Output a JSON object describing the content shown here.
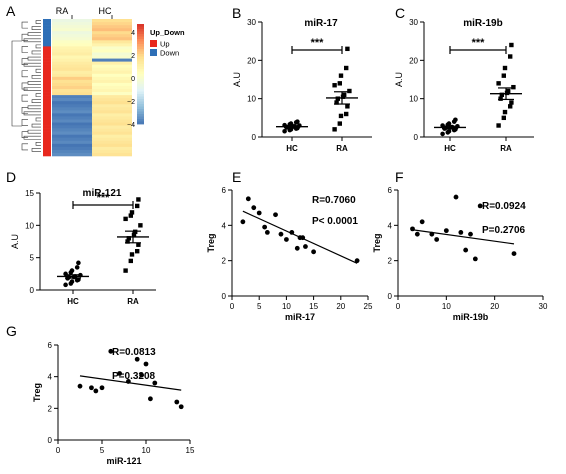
{
  "panel_letters": [
    "A",
    "B",
    "C",
    "D",
    "E",
    "F",
    "G"
  ],
  "chart_data": [
    {
      "panel": "A",
      "type": "heatmap",
      "columns": [
        "RA",
        "HC"
      ],
      "legend": {
        "title": "Up_Down",
        "entries": [
          {
            "label": "Up",
            "color": "#e8281e"
          },
          {
            "label": "Down",
            "color": "#2e6fb7"
          }
        ]
      },
      "colorbar_ticks": [
        "4",
        "2",
        "0",
        "−2",
        "−4"
      ],
      "colorbar_range": [
        -4,
        4
      ],
      "colorscale": [
        "#d73027",
        "#fc8d59",
        "#fee090",
        "#ffffbf",
        "#e0f3f8",
        "#91bfdb",
        "#4575b4"
      ],
      "row_blocks": [
        {
          "group": "Down",
          "rows": 7,
          "RA": -0.6,
          "HC": 1.6
        },
        {
          "group": "Down",
          "rows": 2,
          "RA": -0.2,
          "HC": 0.8
        },
        {
          "group": "Up",
          "rows": 4,
          "RA": 0.6,
          "HC": -0.2
        },
        {
          "group": "Up",
          "rows": 1,
          "RA": 0.4,
          "HC": -3.6
        },
        {
          "group": "Up",
          "rows": 5,
          "RA": 0.9,
          "HC": 0.3
        },
        {
          "group": "Up",
          "rows": 6,
          "RA": 1.4,
          "HC": 0.2
        },
        {
          "group": "Up",
          "rows": 20,
          "RA": -3.8,
          "HC": 1.0
        }
      ]
    },
    {
      "panel": "B",
      "type": "scatter",
      "title": "miR-17",
      "ylabel": "A.U",
      "categories": [
        "HC",
        "RA"
      ],
      "ylim": [
        0,
        30
      ],
      "yticks": [
        "0",
        "10",
        "20",
        "30"
      ],
      "significance": "***",
      "groups": [
        {
          "name": "HC",
          "values": [
            1.5,
            1.8,
            2.0,
            2.2,
            2.3,
            2.5,
            2.6,
            2.7,
            2.8,
            3.0,
            3.1,
            3.3,
            3.5,
            3.8,
            4.0
          ],
          "mean": 2.7,
          "sem": 0.25
        },
        {
          "name": "RA",
          "values": [
            2.0,
            3.5,
            5.5,
            6.0,
            8.0,
            9.0,
            10.0,
            10.5,
            11.0,
            12.0,
            13.5,
            14.0,
            16.0,
            18.0,
            23.0
          ],
          "mean": 10.2,
          "sem": 1.6
        }
      ]
    },
    {
      "panel": "C",
      "type": "scatter",
      "title": "miR-19b",
      "ylabel": "A.U",
      "categories": [
        "HC",
        "RA"
      ],
      "ylim": [
        0,
        30
      ],
      "yticks": [
        "0",
        "10",
        "20",
        "30"
      ],
      "significance": "***",
      "groups": [
        {
          "name": "HC",
          "values": [
            0.8,
            1.2,
            1.5,
            1.8,
            2.0,
            2.2,
            2.4,
            2.5,
            2.6,
            2.8,
            3.0,
            3.2,
            3.5,
            4.0,
            4.5
          ],
          "mean": 2.5,
          "sem": 0.3
        },
        {
          "name": "RA",
          "values": [
            3.0,
            5.0,
            6.5,
            8.0,
            9.0,
            10.0,
            11.0,
            11.5,
            12.0,
            13.0,
            14.0,
            16.0,
            18.0,
            21.0,
            24.0
          ],
          "mean": 11.3,
          "sem": 1.5
        }
      ]
    },
    {
      "panel": "D",
      "type": "scatter",
      "title": "miR-121",
      "ylabel": "A.U",
      "categories": [
        "HC",
        "RA"
      ],
      "ylim": [
        0,
        15
      ],
      "yticks": [
        "0",
        "5",
        "10",
        "15"
      ],
      "significance": "***",
      "groups": [
        {
          "name": "HC",
          "values": [
            0.8,
            1.0,
            1.3,
            1.5,
            1.6,
            1.8,
            2.0,
            2.0,
            2.1,
            2.3,
            2.5,
            2.7,
            3.0,
            3.5,
            4.2
          ],
          "mean": 2.1,
          "sem": 0.25
        },
        {
          "name": "RA",
          "values": [
            3.0,
            4.5,
            5.5,
            6.0,
            7.0,
            7.5,
            8.0,
            8.5,
            9.0,
            10.0,
            11.0,
            11.5,
            12.0,
            13.0,
            14.0
          ],
          "mean": 8.2,
          "sem": 0.9
        }
      ]
    },
    {
      "panel": "E",
      "type": "scatter",
      "xlabel": "miR-17",
      "ylabel": "Treg",
      "xlim": [
        0,
        25
      ],
      "ylim": [
        0,
        6
      ],
      "xticks": [
        "0",
        "5",
        "10",
        "15",
        "20",
        "25"
      ],
      "yticks": [
        "0",
        "2",
        "4",
        "6"
      ],
      "annotations": [
        "R=0.7060",
        "P< 0.0001"
      ],
      "x": [
        2.0,
        3.0,
        4.0,
        5.0,
        6.0,
        6.5,
        8.0,
        9.0,
        10.0,
        11.0,
        12.0,
        12.5,
        13.0,
        13.5,
        15.0,
        23.0
      ],
      "y": [
        4.2,
        5.5,
        5.0,
        4.7,
        3.9,
        3.6,
        4.6,
        3.5,
        3.2,
        3.6,
        2.7,
        3.3,
        3.3,
        2.8,
        2.5,
        2.0
      ],
      "fit": {
        "x": [
          2.0,
          23.0
        ],
        "y": [
          4.8,
          1.85
        ]
      }
    },
    {
      "panel": "F",
      "type": "scatter",
      "xlabel": "miR-19b",
      "ylabel": "Treg",
      "xlim": [
        0,
        30
      ],
      "ylim": [
        0,
        6
      ],
      "xticks": [
        "0",
        "10",
        "20",
        "30"
      ],
      "yticks": [
        "0",
        "2",
        "4",
        "6"
      ],
      "annotations": [
        "R=0.0924",
        "P=0.2706"
      ],
      "x": [
        3.0,
        4.0,
        5.0,
        7.0,
        8.0,
        10.0,
        12.0,
        13.0,
        14.0,
        15.0,
        16.0,
        17.0,
        24.0
      ],
      "y": [
        3.8,
        3.5,
        4.2,
        3.5,
        3.2,
        3.7,
        5.6,
        3.6,
        2.6,
        3.5,
        2.1,
        5.1,
        2.4
      ],
      "fit": {
        "x": [
          3.0,
          24.0
        ],
        "y": [
          3.75,
          2.95
        ]
      }
    },
    {
      "panel": "G",
      "type": "scatter",
      "xlabel": "miR-121",
      "ylabel": "Treg",
      "xlim": [
        0,
        15
      ],
      "ylim": [
        0,
        6
      ],
      "xticks": [
        "0",
        "5",
        "10",
        "15"
      ],
      "yticks": [
        "0",
        "2",
        "4",
        "6"
      ],
      "annotations": [
        "R=0.0813",
        "P=0.3208"
      ],
      "x": [
        2.5,
        3.8,
        4.3,
        5.0,
        6.0,
        7.0,
        8.0,
        9.0,
        9.5,
        10.0,
        10.5,
        11.0,
        13.5,
        14.0
      ],
      "y": [
        3.4,
        3.3,
        3.1,
        3.3,
        5.6,
        4.2,
        3.7,
        5.1,
        4.1,
        4.8,
        2.6,
        3.6,
        2.4,
        2.1
      ],
      "fit": {
        "x": [
          2.5,
          14.0
        ],
        "y": [
          4.05,
          3.15
        ]
      }
    }
  ]
}
